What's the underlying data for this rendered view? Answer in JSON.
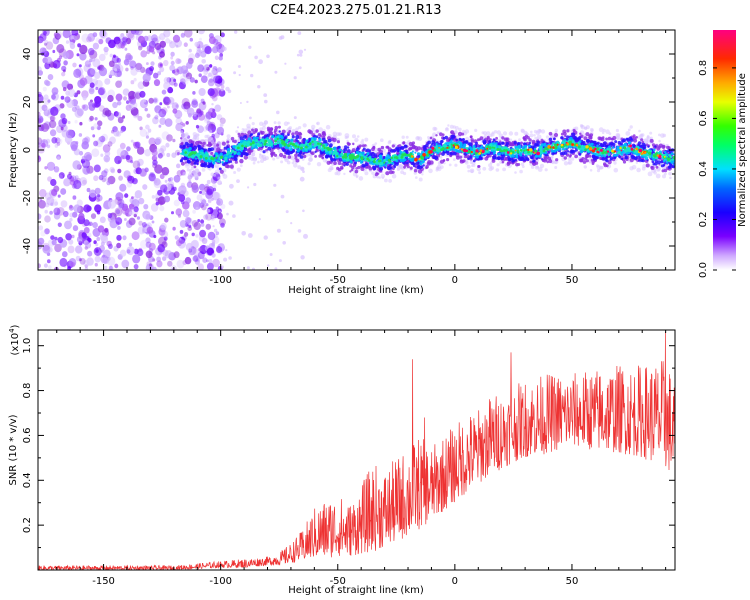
{
  "title": "C2E4.2023.275.01.21.R13",
  "chart_data": [
    {
      "type": "heatmap",
      "name": "spectrogram",
      "xlabel": "Height of straight line (km)",
      "ylabel": "Frequency (Hz)",
      "xlim": [
        -178,
        94
      ],
      "ylim": [
        -50,
        50
      ],
      "xticks": [
        -150,
        -100,
        -50,
        0,
        50
      ],
      "yticks": [
        -40,
        -20,
        0,
        20,
        40
      ],
      "noise_region_x": [
        -178,
        -105
      ],
      "signal_start_x": -117,
      "signal_line": {
        "x": [
          -117,
          -110,
          -105,
          -100,
          -95,
          -90,
          -85,
          -80,
          -75,
          -70,
          -65,
          -60,
          -55,
          -50,
          -45,
          -40,
          -35,
          -30,
          -25,
          -20,
          -15,
          -10,
          -5,
          0,
          5,
          10,
          15,
          20,
          25,
          30,
          35,
          40,
          45,
          50,
          55,
          60,
          65,
          70,
          75,
          80,
          85,
          90,
          94
        ],
        "freq": [
          -1,
          -2,
          -3,
          -4,
          -1,
          2,
          3,
          3,
          4,
          2,
          1,
          3,
          1,
          -2,
          -3,
          -3,
          -4,
          -5,
          -3,
          -2,
          -4,
          0,
          1,
          2,
          0,
          -1,
          1,
          0,
          -1,
          0,
          -1,
          1,
          2,
          3,
          1,
          0,
          -1,
          0,
          1,
          -1,
          -2,
          -3,
          -4
        ]
      },
      "colorbar": {
        "label": "Normalized spectral amplitude",
        "ticks": [
          "0.0",
          "0.2",
          "0.4",
          "0.6",
          "0.8"
        ],
        "range": [
          0,
          0.95
        ]
      }
    },
    {
      "type": "line",
      "name": "snr",
      "xlabel": "Height of straight line (km)",
      "ylabel": "SNR (10 * v/v)",
      "multiplier": "(x10",
      "multiplier_exp": "4",
      "multiplier_close": ")",
      "xlim": [
        -178,
        94
      ],
      "ylim": [
        0,
        1.07
      ],
      "xticks": [
        -150,
        -100,
        -50,
        0,
        50
      ],
      "yticks": [
        "0.2",
        "0.4",
        "0.6",
        "0.8",
        "1.0"
      ],
      "series": [
        {
          "name": "SNR",
          "color": "#ee3333",
          "envelope_x": [
            -178,
            -150,
            -120,
            -100,
            -90,
            -80,
            -75,
            -70,
            -65,
            -60,
            -55,
            -50,
            -45,
            -40,
            -35,
            -30,
            -25,
            -20,
            -15,
            -10,
            -5,
            0,
            5,
            10,
            15,
            20,
            25,
            30,
            40,
            50,
            60,
            70,
            80,
            90,
            94
          ],
          "envelope_low": [
            0.0,
            0.0,
            0.0,
            0.01,
            0.01,
            0.02,
            0.02,
            0.03,
            0.04,
            0.05,
            0.05,
            0.06,
            0.06,
            0.07,
            0.08,
            0.1,
            0.12,
            0.15,
            0.18,
            0.22,
            0.26,
            0.3,
            0.34,
            0.38,
            0.42,
            0.45,
            0.48,
            0.5,
            0.52,
            0.55,
            0.53,
            0.52,
            0.5,
            0.45,
            0.4
          ],
          "envelope_high": [
            0.02,
            0.02,
            0.02,
            0.04,
            0.05,
            0.06,
            0.08,
            0.12,
            0.18,
            0.28,
            0.32,
            0.34,
            0.3,
            0.38,
            0.48,
            0.45,
            0.5,
            0.55,
            0.6,
            0.55,
            0.6,
            0.65,
            0.7,
            0.72,
            0.78,
            0.8,
            0.82,
            0.85,
            0.88,
            0.88,
            0.9,
            0.92,
            0.92,
            0.95,
            0.85
          ],
          "spikes": [
            {
              "x": -18,
              "y": 0.94
            },
            {
              "x": -13,
              "y": 0.68
            },
            {
              "x": 24,
              "y": 0.97
            },
            {
              "x": 82,
              "y": 0.85
            },
            {
              "x": 90,
              "y": 1.06
            }
          ]
        }
      ]
    }
  ]
}
